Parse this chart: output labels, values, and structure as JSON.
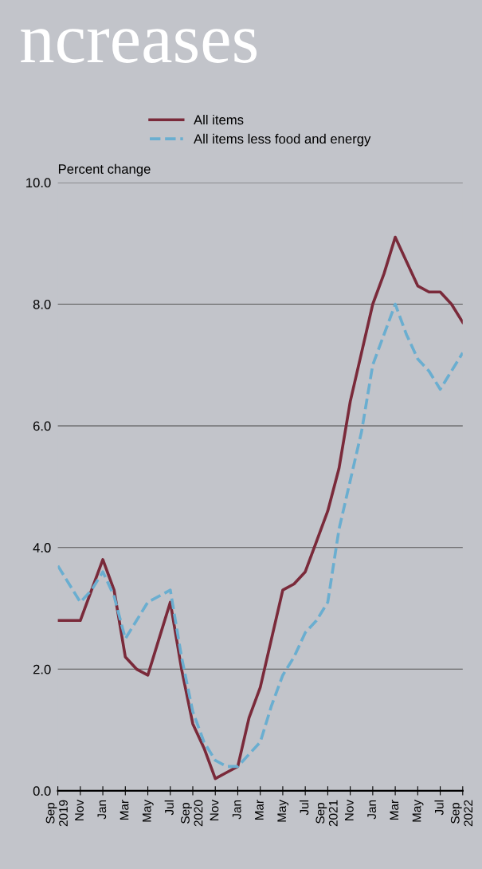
{
  "chart_data": {
    "type": "line",
    "ylabel": "Percent change",
    "annotations": [
      "ncreases"
    ],
    "x": [
      "2019-09",
      "2019-10",
      "2019-11",
      "2019-12",
      "2020-01",
      "2020-02",
      "2020-03",
      "2020-04",
      "2020-05",
      "2020-06",
      "2020-07",
      "2020-08",
      "2020-09",
      "2020-10",
      "2020-11",
      "2020-12",
      "2021-01",
      "2021-02",
      "2021-03",
      "2021-04",
      "2021-05",
      "2021-06",
      "2021-07",
      "2021-08",
      "2021-09",
      "2021-10",
      "2021-11",
      "2021-12",
      "2022-01",
      "2022-02",
      "2022-03",
      "2022-04",
      "2022-05",
      "2022-06",
      "2022-07",
      "2022-08",
      "2022-09"
    ],
    "series": [
      {
        "name": "All items",
        "color": "#7a2a3a",
        "line_style": "solid",
        "values": [
          2.8,
          2.8,
          2.8,
          3.3,
          3.8,
          3.3,
          2.2,
          2.0,
          1.9,
          2.5,
          3.1,
          2.0,
          1.1,
          0.7,
          0.2,
          0.3,
          0.4,
          1.2,
          1.7,
          2.5,
          3.3,
          3.4,
          3.6,
          4.1,
          4.6,
          5.3,
          6.4,
          7.2,
          8.0,
          8.5,
          9.1,
          8.7,
          8.3,
          8.2,
          8.2,
          8.0,
          7.7
        ]
      },
      {
        "name": "All items less food and energy",
        "color": "#6aaed0",
        "line_style": "dashed",
        "values": [
          3.7,
          3.4,
          3.1,
          3.3,
          3.6,
          3.2,
          2.5,
          2.8,
          3.1,
          3.2,
          3.3,
          2.2,
          1.3,
          0.8,
          0.5,
          0.4,
          0.4,
          0.6,
          0.8,
          1.4,
          1.9,
          2.2,
          2.6,
          2.8,
          3.1,
          4.3,
          5.1,
          5.9,
          7.0,
          7.5,
          8.0,
          7.5,
          7.1,
          6.9,
          6.6,
          6.9,
          7.2
        ]
      }
    ],
    "ylim": [
      0,
      10
    ],
    "yticks": [
      {
        "value": 0,
        "label": "0.0"
      },
      {
        "value": 2,
        "label": "2.0"
      },
      {
        "value": 4,
        "label": "4.0"
      },
      {
        "value": 6,
        "label": "6.0"
      },
      {
        "value": 8,
        "label": "8.0"
      },
      {
        "value": 10,
        "label": "10.0"
      }
    ],
    "xlim": [
      "2019-09",
      "2022-09"
    ],
    "xticks": [
      {
        "value": "2019-09",
        "label": "Sep\n2019"
      },
      {
        "value": "2019-11",
        "label": "Nov"
      },
      {
        "value": "2020-01",
        "label": "Jan"
      },
      {
        "value": "2020-03",
        "label": "Mar"
      },
      {
        "value": "2020-05",
        "label": "May"
      },
      {
        "value": "2020-07",
        "label": "Jul"
      },
      {
        "value": "2020-09",
        "label": "Sep\n2020"
      },
      {
        "value": "2020-11",
        "label": "Nov"
      },
      {
        "value": "2021-01",
        "label": "Jan"
      },
      {
        "value": "2021-03",
        "label": "Mar"
      },
      {
        "value": "2021-05",
        "label": "May"
      },
      {
        "value": "2021-07",
        "label": "Jul"
      },
      {
        "value": "2021-09",
        "label": "Sep\n2021"
      },
      {
        "value": "2021-11",
        "label": "Nov"
      },
      {
        "value": "2022-01",
        "label": "Jan"
      },
      {
        "value": "2022-03",
        "label": "Mar"
      },
      {
        "value": "2022-05",
        "label": "May"
      },
      {
        "value": "2022-07",
        "label": "Jul"
      },
      {
        "value": "2022-09",
        "label": "Sep\n2022"
      }
    ],
    "grid": "y",
    "legend": "top",
    "marker": "none"
  }
}
